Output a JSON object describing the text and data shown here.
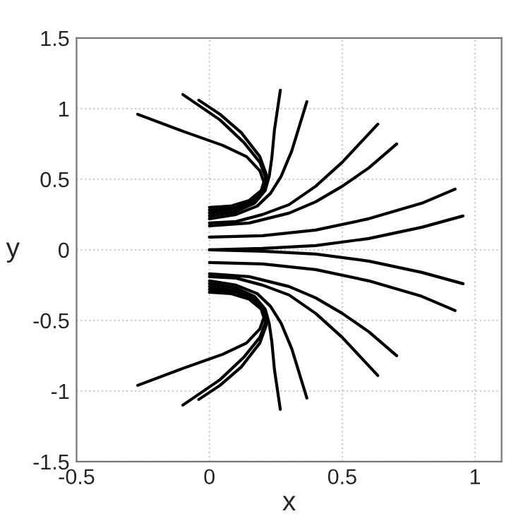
{
  "chart_data": {
    "type": "line",
    "xlabel": "x",
    "ylabel": "y",
    "xlim": [
      -0.5,
      1.1
    ],
    "xticks": [
      -0.5,
      0,
      0.5,
      1
    ],
    "ylim": [
      -1.5,
      1.5
    ],
    "yticks": [
      -1.5,
      -1,
      -0.5,
      0,
      0.5,
      1,
      1.5
    ],
    "grid": true,
    "marker": "none",
    "line_style": "solid",
    "series": [
      {
        "color": "#000000",
        "x": [
          0,
          0.08,
          0.15,
          0.195,
          0.205,
          0.19,
          0.14,
          0.05,
          -0.1,
          -0.27
        ],
        "values": [
          0.3,
          0.31,
          0.35,
          0.42,
          0.48,
          0.56,
          0.66,
          0.74,
          0.84,
          0.96
        ]
      },
      {
        "color": "#000000",
        "x": [
          0,
          0.1,
          0.17,
          0.205,
          0.21,
          0.19,
          0.13,
          0.04,
          -0.1
        ],
        "values": [
          0.28,
          0.3,
          0.36,
          0.44,
          0.52,
          0.62,
          0.76,
          0.92,
          1.1
        ]
      },
      {
        "color": "#000000",
        "x": [
          0,
          0.1,
          0.17,
          0.21,
          0.215,
          0.19,
          0.12,
          0.04,
          -0.04
        ],
        "values": [
          0.26,
          0.29,
          0.35,
          0.45,
          0.53,
          0.66,
          0.83,
          0.96,
          1.06
        ]
      },
      {
        "color": "#000000",
        "x": [
          0,
          0.1,
          0.17,
          0.21,
          0.225,
          0.235,
          0.245,
          0.267
        ],
        "values": [
          0.24,
          0.27,
          0.33,
          0.42,
          0.52,
          0.65,
          0.85,
          1.13
        ]
      },
      {
        "color": "#000000",
        "x": [
          0,
          0.1,
          0.18,
          0.23,
          0.27,
          0.31,
          0.367
        ],
        "values": [
          0.22,
          0.25,
          0.31,
          0.4,
          0.52,
          0.7,
          1.05
        ]
      },
      {
        "color": "#000000",
        "x": [
          0,
          0.1,
          0.2,
          0.3,
          0.4,
          0.5,
          0.634
        ],
        "values": [
          0.19,
          0.2,
          0.25,
          0.32,
          0.45,
          0.62,
          0.89
        ]
      },
      {
        "color": "#000000",
        "x": [
          0,
          0.15,
          0.3,
          0.4,
          0.5,
          0.6,
          0.705
        ],
        "values": [
          0.17,
          0.19,
          0.26,
          0.34,
          0.45,
          0.58,
          0.75
        ]
      },
      {
        "color": "#000000",
        "x": [
          0,
          0.2,
          0.4,
          0.6,
          0.8,
          0.925
        ],
        "values": [
          0.09,
          0.1,
          0.14,
          0.22,
          0.33,
          0.43
        ]
      },
      {
        "color": "#000000",
        "x": [
          0,
          0.2,
          0.4,
          0.6,
          0.8,
          0.955
        ],
        "values": [
          0.0,
          0.01,
          0.03,
          0.08,
          0.16,
          0.24
        ]
      },
      {
        "color": "#000000",
        "x": [
          0,
          0.2,
          0.4,
          0.6,
          0.8,
          0.955
        ],
        "values": [
          0.0,
          -0.01,
          -0.03,
          -0.08,
          -0.16,
          -0.24
        ]
      },
      {
        "color": "#000000",
        "x": [
          0,
          0.2,
          0.4,
          0.6,
          0.8,
          0.925
        ],
        "values": [
          -0.09,
          -0.1,
          -0.14,
          -0.22,
          -0.33,
          -0.43
        ]
      },
      {
        "color": "#000000",
        "x": [
          0,
          0.15,
          0.3,
          0.4,
          0.5,
          0.6,
          0.705
        ],
        "values": [
          -0.17,
          -0.19,
          -0.26,
          -0.34,
          -0.45,
          -0.58,
          -0.75
        ]
      },
      {
        "color": "#000000",
        "x": [
          0,
          0.1,
          0.2,
          0.3,
          0.4,
          0.5,
          0.634
        ],
        "values": [
          -0.19,
          -0.2,
          -0.25,
          -0.32,
          -0.45,
          -0.62,
          -0.89
        ]
      },
      {
        "color": "#000000",
        "x": [
          0,
          0.1,
          0.18,
          0.23,
          0.27,
          0.31,
          0.367
        ],
        "values": [
          -0.22,
          -0.25,
          -0.31,
          -0.4,
          -0.52,
          -0.7,
          -1.05
        ]
      },
      {
        "color": "#000000",
        "x": [
          0,
          0.1,
          0.17,
          0.21,
          0.225,
          0.235,
          0.245,
          0.267
        ],
        "values": [
          -0.24,
          -0.27,
          -0.33,
          -0.42,
          -0.52,
          -0.65,
          -0.85,
          -1.13
        ]
      },
      {
        "color": "#000000",
        "x": [
          0,
          0.1,
          0.17,
          0.21,
          0.215,
          0.19,
          0.12,
          0.04,
          -0.04
        ],
        "values": [
          -0.26,
          -0.29,
          -0.35,
          -0.45,
          -0.53,
          -0.66,
          -0.83,
          -0.96,
          -1.06
        ]
      },
      {
        "color": "#000000",
        "x": [
          0,
          0.1,
          0.17,
          0.205,
          0.21,
          0.19,
          0.13,
          0.04,
          -0.1
        ],
        "values": [
          -0.28,
          -0.3,
          -0.36,
          -0.44,
          -0.52,
          -0.62,
          -0.76,
          -0.92,
          -1.1
        ]
      },
      {
        "color": "#000000",
        "x": [
          0,
          0.08,
          0.15,
          0.195,
          0.205,
          0.19,
          0.14,
          0.05,
          -0.1,
          -0.27
        ],
        "values": [
          -0.3,
          -0.31,
          -0.35,
          -0.42,
          -0.48,
          -0.56,
          -0.66,
          -0.74,
          -0.84,
          -0.96
        ]
      }
    ]
  }
}
